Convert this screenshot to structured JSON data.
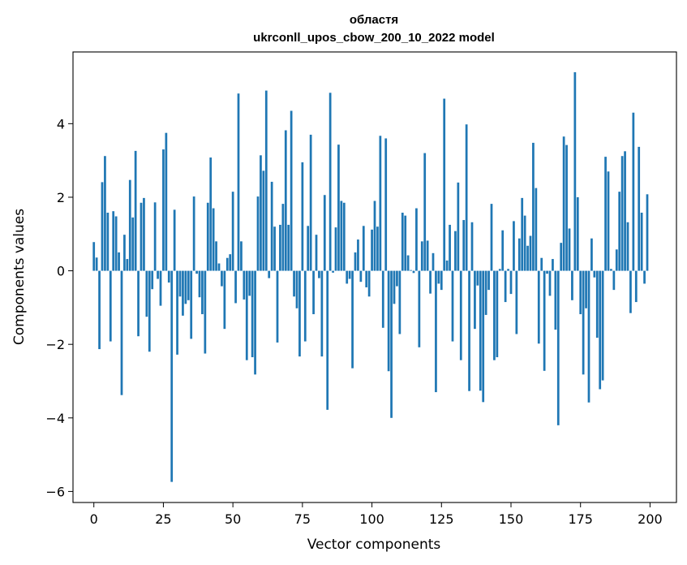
{
  "chart_data": {
    "type": "bar",
    "title": "областя",
    "subtitle": "ukrconll_upos_cbow_200_10_2022 model",
    "xlabel": "Vector components",
    "ylabel": "Components values",
    "xlim": [
      -7.5,
      209.5
    ],
    "ylim": [
      -6.3,
      5.95
    ],
    "xticks": [
      0,
      25,
      50,
      75,
      100,
      125,
      150,
      175,
      200
    ],
    "yticks": [
      -6,
      -4,
      -2,
      0,
      2,
      4
    ],
    "bar_color": "#1f77b4",
    "x": [
      0,
      1,
      2,
      3,
      4,
      5,
      6,
      7,
      8,
      9,
      10,
      11,
      12,
      13,
      14,
      15,
      16,
      17,
      18,
      19,
      20,
      21,
      22,
      23,
      24,
      25,
      26,
      27,
      28,
      29,
      30,
      31,
      32,
      33,
      34,
      35,
      36,
      37,
      38,
      39,
      40,
      41,
      42,
      43,
      44,
      45,
      46,
      47,
      48,
      49,
      50,
      51,
      52,
      53,
      54,
      55,
      56,
      57,
      58,
      59,
      60,
      61,
      62,
      63,
      64,
      65,
      66,
      67,
      68,
      69,
      70,
      71,
      72,
      73,
      74,
      75,
      76,
      77,
      78,
      79,
      80,
      81,
      82,
      83,
      84,
      85,
      86,
      87,
      88,
      89,
      90,
      91,
      92,
      93,
      94,
      95,
      96,
      97,
      98,
      99,
      100,
      101,
      102,
      103,
      104,
      105,
      106,
      107,
      108,
      109,
      110,
      111,
      112,
      113,
      114,
      115,
      116,
      117,
      118,
      119,
      120,
      121,
      122,
      123,
      124,
      125,
      126,
      127,
      128,
      129,
      130,
      131,
      132,
      133,
      134,
      135,
      136,
      137,
      138,
      139,
      140,
      141,
      142,
      143,
      144,
      145,
      146,
      147,
      148,
      149,
      150,
      151,
      152,
      153,
      154,
      155,
      156,
      157,
      158,
      159,
      160,
      161,
      162,
      163,
      164,
      165,
      166,
      167,
      168,
      169,
      170,
      171,
      172,
      173,
      174,
      175,
      176,
      177,
      178,
      179,
      180,
      181,
      182,
      183,
      184,
      185,
      186,
      187,
      188,
      189,
      190,
      191,
      192,
      193,
      194,
      195,
      196,
      197,
      198,
      199
    ],
    "values": [
      0.78,
      0.36,
      -2.13,
      2.41,
      3.12,
      1.58,
      -1.92,
      1.62,
      1.48,
      0.5,
      -3.38,
      0.98,
      0.32,
      2.47,
      1.45,
      3.26,
      -1.78,
      1.85,
      1.98,
      -1.25,
      -2.2,
      -0.5,
      1.86,
      -0.22,
      -0.95,
      3.3,
      3.75,
      -0.32,
      -5.74,
      1.66,
      -2.28,
      -0.7,
      -1.22,
      -0.9,
      -0.8,
      -1.85,
      2.02,
      -0.08,
      -0.72,
      -1.18,
      -2.25,
      1.85,
      3.08,
      1.7,
      0.8,
      0.2,
      -0.42,
      -1.58,
      0.35,
      0.45,
      2.15,
      -0.88,
      4.82,
      0.8,
      -0.78,
      -2.43,
      -0.68,
      -2.35,
      -2.82,
      2.02,
      3.14,
      2.72,
      4.9,
      -0.2,
      2.42,
      1.2,
      -1.95,
      1.25,
      1.82,
      3.82,
      1.25,
      4.35,
      -0.7,
      -1.02,
      -2.33,
      2.95,
      -1.92,
      1.22,
      3.7,
      -1.18,
      0.98,
      -0.2,
      -2.33,
      2.06,
      -3.78,
      4.84,
      -0.05,
      1.18,
      3.43,
      1.9,
      1.85,
      -0.35,
      -0.22,
      -2.65,
      0.5,
      0.85,
      -0.3,
      1.22,
      -0.45,
      -0.7,
      1.12,
      1.9,
      1.2,
      3.67,
      -1.55,
      3.6,
      -2.73,
      -4.0,
      -0.9,
      -0.42,
      -1.72,
      1.58,
      1.5,
      0.42,
      0.02,
      -0.06,
      1.7,
      -2.08,
      0.8,
      3.2,
      0.82,
      -0.62,
      0.48,
      -3.3,
      -0.35,
      -0.52,
      4.68,
      0.28,
      1.25,
      -1.92,
      1.08,
      2.4,
      -2.43,
      1.38,
      3.98,
      -3.27,
      1.32,
      -1.58,
      -0.4,
      -3.26,
      -3.57,
      -1.2,
      -0.52,
      1.82,
      -2.43,
      -2.35,
      0.05,
      1.1,
      -0.85,
      0.05,
      -0.63,
      1.35,
      -1.72,
      0.88,
      1.98,
      1.5,
      0.68,
      0.95,
      3.48,
      2.25,
      -1.98,
      0.35,
      -2.72,
      -0.08,
      -0.68,
      0.32,
      -1.6,
      -4.2,
      0.76,
      3.65,
      3.42,
      1.15,
      -0.8,
      5.4,
      2.0,
      -1.18,
      -2.82,
      -1.02,
      -3.58,
      0.88,
      -0.18,
      -1.82,
      -3.22,
      -2.98,
      3.1,
      2.7,
      0.05,
      -0.52,
      0.58,
      2.15,
      3.12,
      3.25,
      1.32,
      -1.15,
      4.3,
      -0.85,
      3.37,
      1.58,
      -0.35,
      2.08
    ]
  }
}
